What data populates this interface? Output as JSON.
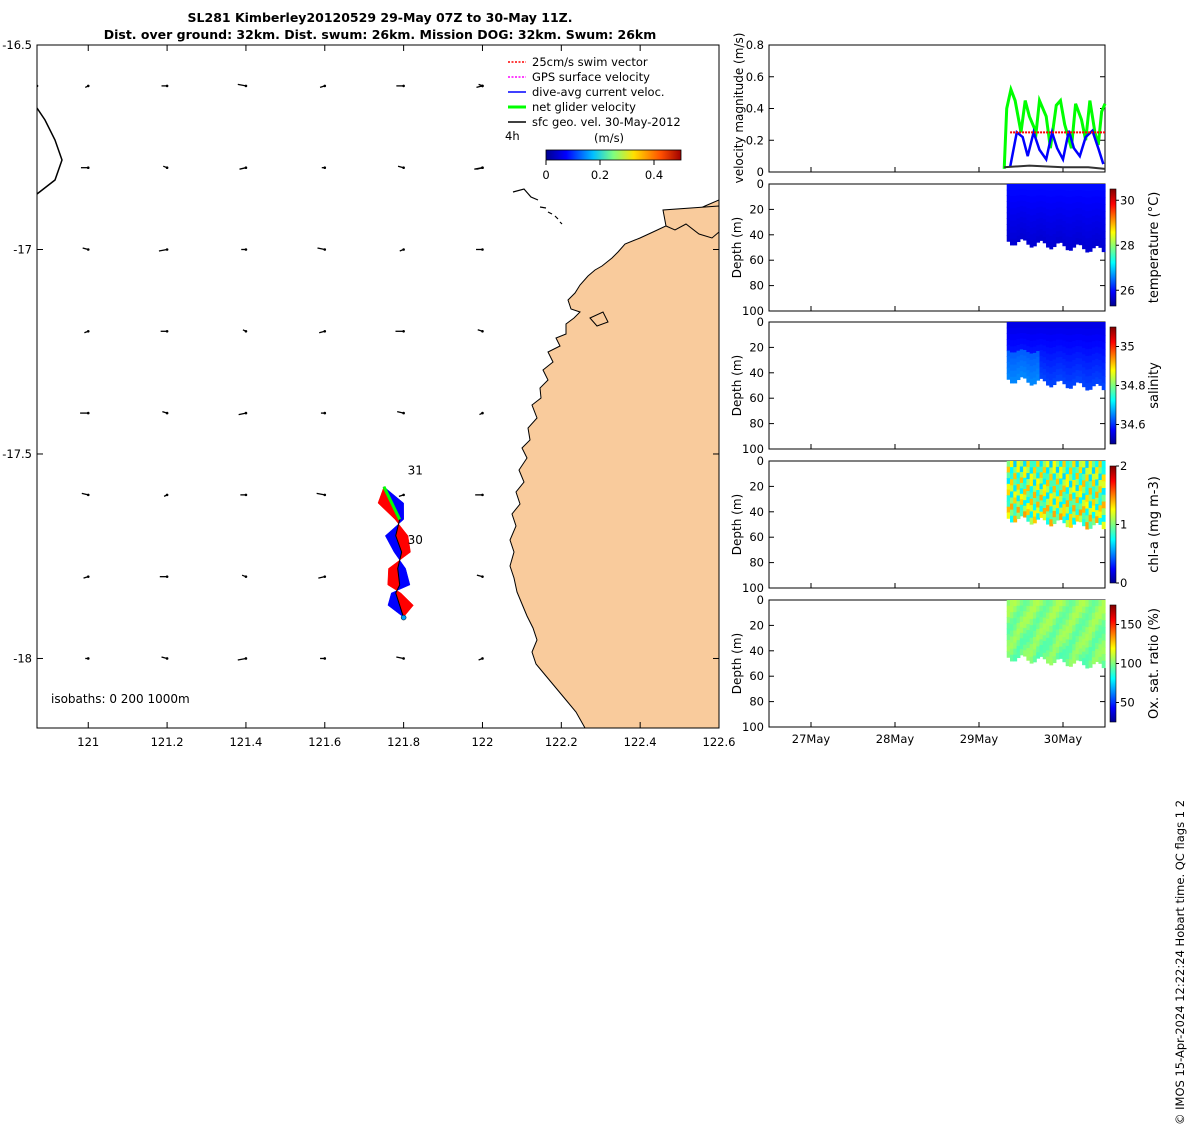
{
  "header": {
    "title": "SL281 Kimberley20120529 29-May 07Z to 30-May 11Z.",
    "subtitle": "Dist. over ground: 32km. Dist. swum: 26km. Mission DOG: 32km. Swum: 26km"
  },
  "footer": "© IMOS 15-Apr-2024 12:22:24 Hobart time. QC flags 1  2",
  "colors": {
    "land": "#f9cb9c",
    "swim_vector": "#ff0000",
    "gps_velocity": "#ff00ff",
    "current_velocity": "#0000ff",
    "net_velocity": "#00ff00",
    "geo_velocity": "#000000",
    "velocity_mag": "#333333"
  },
  "chart_data": [
    {
      "type": "map",
      "title": "SL281 Kimberley20120529 29-May 07Z to 30-May 11Z.",
      "xlim": [
        120.87,
        122.6
      ],
      "ylim": [
        -18.17,
        -16.5
      ],
      "xticks": [
        {
          "v": 121,
          "label": "121"
        },
        {
          "v": 121.2,
          "label": "121.2"
        },
        {
          "v": 121.4,
          "label": "121.4"
        },
        {
          "v": 121.6,
          "label": "121.6"
        },
        {
          "v": 121.8,
          "label": "121.8"
        },
        {
          "v": 122,
          "label": "122"
        },
        {
          "v": 122.2,
          "label": "122.2"
        },
        {
          "v": 122.4,
          "label": "122.4"
        },
        {
          "v": 122.6,
          "label": "122.6"
        }
      ],
      "yticks": [
        {
          "v": -16.5,
          "label": "-16.5"
        },
        {
          "v": -17,
          "label": "-17"
        },
        {
          "v": -17.5,
          "label": "-17.5"
        },
        {
          "v": -18,
          "label": "-18"
        }
      ],
      "legend": [
        {
          "label": "25cm/s swim vector",
          "color": "#ff0000"
        },
        {
          "label": "GPS surface velocity",
          "color": "#ff00ff"
        },
        {
          "label": "dive-avg current veloc.",
          "color": "#0000ff"
        },
        {
          "label": "net glider velocity",
          "color": "#00ff00"
        },
        {
          "label": "sfc geo. vel. 30-May-2012",
          "color": "#000000"
        }
      ],
      "legend_position": "top-right",
      "time_step_label": "4h",
      "colorbar": {
        "label": "(m/s)",
        "ticks": [
          "0",
          "0.2",
          "0.4"
        ],
        "range": [
          0,
          0.5
        ]
      },
      "isobaths_label": "isobaths: 0   200  1000m",
      "day_labels": [
        {
          "label": "31",
          "lon": 121.805,
          "lat": -17.55
        },
        {
          "label": "30",
          "lon": 121.805,
          "lat": -17.72
        }
      ],
      "glider_track": [
        [
          121.75,
          -17.58
        ],
        [
          121.77,
          -17.62
        ],
        [
          121.79,
          -17.66
        ],
        [
          121.78,
          -17.7
        ],
        [
          121.795,
          -17.74
        ],
        [
          121.785,
          -17.78
        ],
        [
          121.79,
          -17.82
        ],
        [
          121.78,
          -17.84
        ],
        [
          121.79,
          -17.87
        ],
        [
          121.8,
          -17.9
        ]
      ],
      "geo_velocity_grid": {
        "lons": [
          121.0,
          121.2,
          121.4,
          121.6,
          121.8,
          122.0
        ],
        "lats": [
          -16.6,
          -16.8,
          -17.0,
          -17.2,
          -17.4,
          -17.6,
          -17.8,
          -18.0
        ],
        "extra": [
          [
            120.87,
            -16.6
          ]
        ],
        "typical_u": -0.02,
        "typical_v": 0.005
      }
    },
    {
      "type": "line",
      "ylabel": "velocity magnitude (m/s)",
      "ylim": [
        0,
        0.8
      ],
      "yticks": [
        "0",
        "0.2",
        "0.4",
        "0.6",
        "0.8"
      ],
      "x_range_days": [
        26.5,
        30.5
      ],
      "series": [
        {
          "name": "net glider velocity",
          "color": "#00ff00",
          "x": [
            29.3,
            29.33,
            29.38,
            29.43,
            29.5,
            29.55,
            29.6,
            29.68,
            29.72,
            29.8,
            29.85,
            29.92,
            29.97,
            30.02,
            30.1,
            30.15,
            30.22,
            30.27,
            30.32,
            30.38,
            30.42,
            30.46,
            30.5
          ],
          "y": [
            0.02,
            0.4,
            0.52,
            0.45,
            0.25,
            0.45,
            0.35,
            0.25,
            0.45,
            0.35,
            0.15,
            0.42,
            0.45,
            0.3,
            0.15,
            0.43,
            0.33,
            0.2,
            0.45,
            0.25,
            0.17,
            0.38,
            0.43
          ]
        },
        {
          "name": "dive-avg current veloc.",
          "color": "#0000ff",
          "x": [
            29.37,
            29.45,
            29.52,
            29.58,
            29.65,
            29.72,
            29.8,
            29.87,
            29.93,
            30.0,
            30.07,
            30.13,
            30.2,
            30.27,
            30.35,
            30.42,
            30.48
          ],
          "y": [
            0.03,
            0.25,
            0.22,
            0.1,
            0.25,
            0.14,
            0.08,
            0.25,
            0.15,
            0.08,
            0.26,
            0.15,
            0.1,
            0.22,
            0.26,
            0.15,
            0.05
          ]
        },
        {
          "name": "25cm/s swim vector",
          "color": "#ff0000",
          "x": [
            29.37,
            30.5
          ],
          "y": [
            0.25,
            0.25
          ]
        },
        {
          "name": "sfc geo. vel.",
          "color": "#333333",
          "x": [
            29.3,
            29.6,
            30.0,
            30.3,
            30.5
          ],
          "y": [
            0.03,
            0.04,
            0.03,
            0.03,
            0.02
          ]
        }
      ]
    },
    {
      "type": "heatmap",
      "variable": "temperature",
      "ylabel": "Depth (m)",
      "clabel": "temperature (°C)",
      "ylim": [
        100,
        0
      ],
      "yticks": [
        "0",
        "20",
        "40",
        "60",
        "80",
        "100"
      ],
      "crange": [
        25.3,
        30.5
      ],
      "cticks": [
        {
          "v": 26,
          "label": "26"
        },
        {
          "v": 28,
          "label": "28"
        },
        {
          "v": 30,
          "label": "30"
        }
      ],
      "x_range_days": [
        29.33,
        30.5
      ],
      "max_depth": [
        45,
        52
      ],
      "surface_value": 26.0,
      "deep_value": 25.7
    },
    {
      "type": "heatmap",
      "variable": "salinity",
      "ylabel": "Depth (m)",
      "clabel": "salinity",
      "ylim": [
        100,
        0
      ],
      "yticks": [
        "0",
        "20",
        "40",
        "60",
        "80",
        "100"
      ],
      "crange": [
        34.5,
        35.1
      ],
      "cticks": [
        {
          "v": 34.6,
          "label": "34.6"
        },
        {
          "v": 34.8,
          "label": "34.8"
        },
        {
          "v": 35,
          "label": "35"
        }
      ],
      "x_range_days": [
        29.33,
        30.5
      ],
      "max_depth": [
        45,
        52
      ],
      "surface_value": 34.56,
      "deep_value": 34.62
    },
    {
      "type": "heatmap",
      "variable": "chl-a",
      "ylabel": "Depth (m)",
      "clabel": "chl-a (mg m-3)",
      "ylim": [
        100,
        0
      ],
      "yticks": [
        "0",
        "20",
        "40",
        "60",
        "80",
        "100"
      ],
      "crange": [
        0,
        2
      ],
      "cticks": [
        {
          "v": 0,
          "label": "0"
        },
        {
          "v": 1,
          "label": "1"
        },
        {
          "v": 2,
          "label": "2"
        }
      ],
      "x_range_days": [
        29.33,
        30.5
      ],
      "max_depth": [
        45,
        52
      ],
      "surface_value": 1.0,
      "deep_value": 1.1
    },
    {
      "type": "heatmap",
      "variable": "oxygen",
      "ylabel": "Depth (m)",
      "clabel": "Ox. sat. ratio (%)",
      "ylim": [
        100,
        0
      ],
      "yticks": [
        "0",
        "20",
        "40",
        "60",
        "80",
        "100"
      ],
      "crange": [
        25,
        175
      ],
      "cticks": [
        {
          "v": 50,
          "label": "50"
        },
        {
          "v": 100,
          "label": "100"
        },
        {
          "v": 150,
          "label": "150"
        }
      ],
      "x_range_days": [
        29.33,
        30.5
      ],
      "max_depth": [
        45,
        52
      ],
      "surface_value": 102,
      "deep_value": 98
    }
  ],
  "time_axis": {
    "xlim_days": [
      26.5,
      30.5
    ],
    "ticks": [
      {
        "v": 27,
        "label": "27May"
      },
      {
        "v": 28,
        "label": "28May"
      },
      {
        "v": 29,
        "label": "29May"
      },
      {
        "v": 30,
        "label": "30May"
      }
    ]
  }
}
